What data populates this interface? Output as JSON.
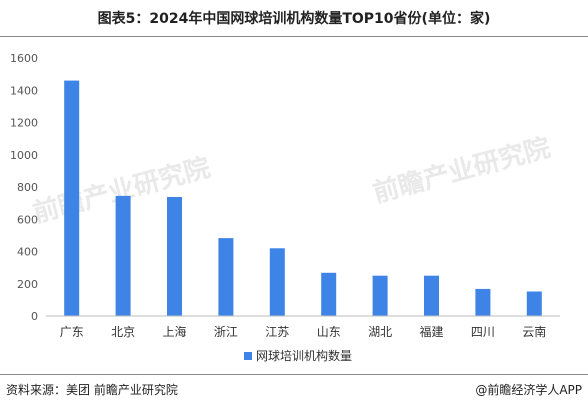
{
  "title": "图表5：2024年中国网球培训机构数量TOP10省份(单位：家)",
  "source": "资料来源：美团 前瞻产业研究院",
  "credit": "@前瞻经济学人APP",
  "watermark": "前瞻产业研究院",
  "colors": {
    "bar": "#3d84e6",
    "axis": "#bdbdbd"
  },
  "chart_data": {
    "type": "bar",
    "categories": [
      "广东",
      "北京",
      "上海",
      "浙江",
      "江苏",
      "山东",
      "湖北",
      "福建",
      "四川",
      "云南"
    ],
    "series": [
      {
        "name": "网球培训机构数量",
        "values": [
          1460,
          745,
          738,
          483,
          420,
          268,
          250,
          250,
          168,
          152
        ]
      }
    ],
    "ylim": [
      0,
      1600
    ],
    "yticks": [
      0,
      200,
      400,
      600,
      800,
      1000,
      1200,
      1400,
      1600
    ],
    "grid": false,
    "legend": "bottom"
  }
}
